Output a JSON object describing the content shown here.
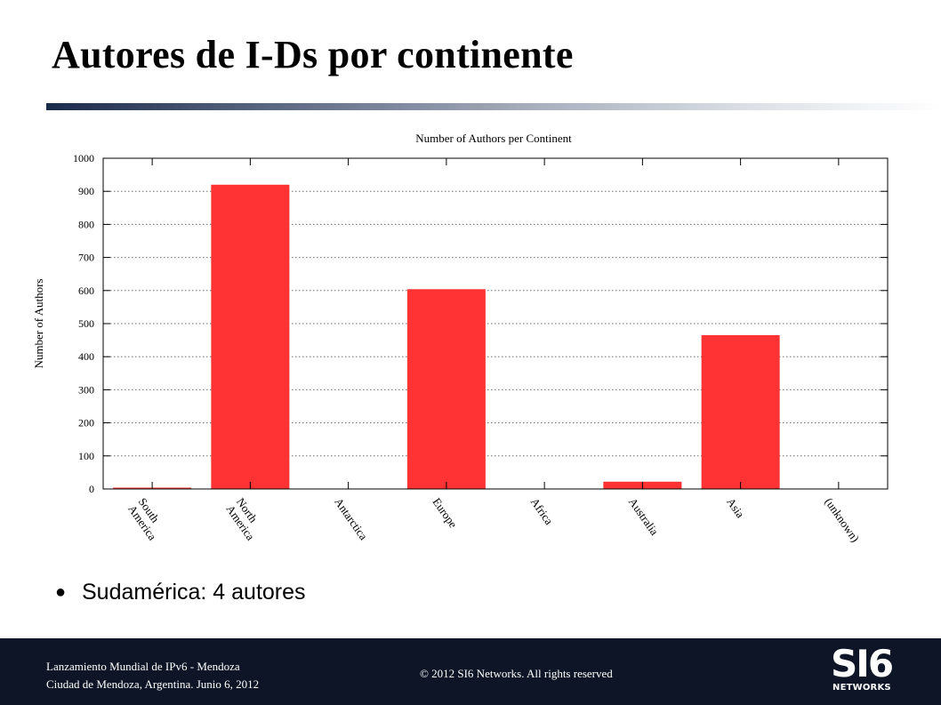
{
  "slide": {
    "title": "Autores de I-Ds por continente",
    "bullet_symbol": "●",
    "bullet_text": "Sudamérica: 4 autores"
  },
  "footer": {
    "line1": "Lanzamiento Mundial de IPv6 - Mendoza",
    "line2": "Ciudad de Mendoza, Argentina. Junio 6, 2012",
    "copyright": "© 2012 SI6 Networks. All rights reserved",
    "logo_main": "SI6",
    "logo_sub": "NETWORKS"
  },
  "colors": {
    "bar": "#ff3333",
    "footer_bg": "#0d1526",
    "title_rule": "#1a2a4a"
  },
  "chart_data": {
    "type": "bar",
    "title": "Number of Authors per Continent",
    "xlabel": "",
    "ylabel": "Number of Authors",
    "ylim": [
      0,
      1000
    ],
    "yticks": [
      0,
      100,
      200,
      300,
      400,
      500,
      600,
      700,
      800,
      900,
      1000
    ],
    "grid": true,
    "categories": [
      [
        "South",
        "America"
      ],
      [
        "North",
        "America"
      ],
      [
        "Antarctica"
      ],
      [
        "Europe"
      ],
      [
        "Africa"
      ],
      [
        "Australia"
      ],
      [
        "Asia"
      ],
      [
        "(unknown)"
      ]
    ],
    "values": [
      4,
      920,
      0,
      604,
      0,
      22,
      465,
      0
    ]
  }
}
